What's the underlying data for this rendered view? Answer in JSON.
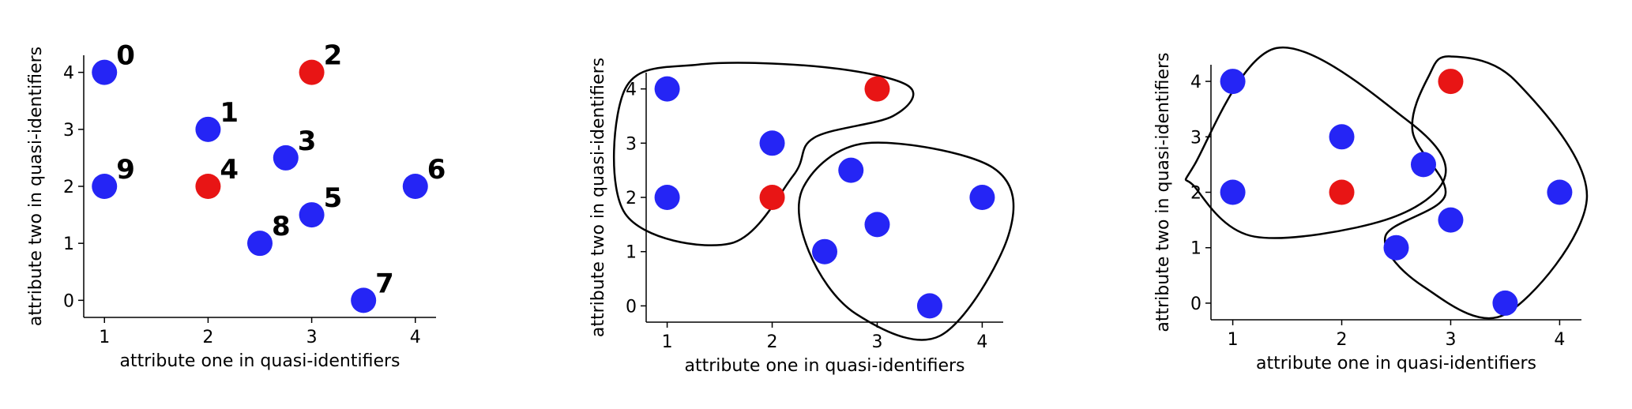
{
  "colors": {
    "blue": "#2525f5",
    "red": "#e81515",
    "axis": "#000000"
  },
  "chart_data": [
    {
      "type": "scatter",
      "xlabel": "attribute one in quasi-identifiers",
      "ylabel": "attribute two in quasi-identifiers",
      "xticks": [
        "1",
        "2",
        "3",
        "4"
      ],
      "yticks": [
        "0",
        "1",
        "2",
        "3",
        "4"
      ],
      "xlim": [
        0.8,
        4.2
      ],
      "ylim": [
        -0.3,
        4.3
      ],
      "grid": false,
      "points": [
        {
          "label": "0",
          "x": 1,
          "y": 4,
          "color": "blue"
        },
        {
          "label": "1",
          "x": 2,
          "y": 3,
          "color": "blue"
        },
        {
          "label": "2",
          "x": 3,
          "y": 4,
          "color": "red"
        },
        {
          "label": "3",
          "x": 2.75,
          "y": 2.5,
          "color": "blue"
        },
        {
          "label": "4",
          "x": 2,
          "y": 2,
          "color": "red"
        },
        {
          "label": "5",
          "x": 3,
          "y": 1.5,
          "color": "blue"
        },
        {
          "label": "6",
          "x": 4,
          "y": 2,
          "color": "blue"
        },
        {
          "label": "7",
          "x": 3.5,
          "y": 0,
          "color": "blue"
        },
        {
          "label": "8",
          "x": 2.5,
          "y": 1,
          "color": "blue"
        },
        {
          "label": "9",
          "x": 1,
          "y": 2,
          "color": "blue"
        }
      ]
    },
    {
      "type": "scatter",
      "xlabel": "attribute one in quasi-identifiers",
      "ylabel": "attribute two in quasi-identifiers",
      "xticks": [
        "1",
        "2",
        "3",
        "4"
      ],
      "yticks": [
        "0",
        "1",
        "2",
        "3",
        "4"
      ],
      "xlim": [
        0.8,
        4.2
      ],
      "ylim": [
        -0.3,
        4.3
      ],
      "grid": false,
      "points": [
        {
          "x": 1,
          "y": 4,
          "color": "blue"
        },
        {
          "x": 2,
          "y": 3,
          "color": "blue"
        },
        {
          "x": 3,
          "y": 4,
          "color": "red"
        },
        {
          "x": 2.75,
          "y": 2.5,
          "color": "blue"
        },
        {
          "x": 2,
          "y": 2,
          "color": "red"
        },
        {
          "x": 3,
          "y": 1.5,
          "color": "blue"
        },
        {
          "x": 4,
          "y": 2,
          "color": "blue"
        },
        {
          "x": 3.5,
          "y": 0,
          "color": "blue"
        },
        {
          "x": 2.5,
          "y": 1,
          "color": "blue"
        },
        {
          "x": 1,
          "y": 2,
          "color": "blue"
        }
      ],
      "clusters": [
        [
          [
            0.6,
            4.0
          ],
          [
            1.3,
            4.45
          ],
          [
            2.5,
            4.4
          ],
          [
            3.3,
            4.05
          ],
          [
            3.15,
            3.5
          ],
          [
            2.4,
            3.1
          ],
          [
            2.2,
            2.4
          ],
          [
            1.6,
            1.15
          ],
          [
            0.6,
            1.7
          ]
        ],
        [
          [
            2.3,
            2.2
          ],
          [
            2.9,
            3.0
          ],
          [
            4.1,
            2.55
          ],
          [
            4.25,
            1.3
          ],
          [
            3.6,
            -0.55
          ],
          [
            2.8,
            -0.15
          ],
          [
            2.35,
            1.0
          ]
        ]
      ]
    },
    {
      "type": "scatter",
      "xlabel": "attribute one in quasi-identifiers",
      "ylabel": "attribute two in quasi-identifiers",
      "xticks": [
        "1",
        "2",
        "3",
        "4"
      ],
      "yticks": [
        "0",
        "1",
        "2",
        "3",
        "4"
      ],
      "xlim": [
        0.8,
        4.2
      ],
      "ylim": [
        -0.3,
        4.3
      ],
      "grid": false,
      "points": [
        {
          "x": 1,
          "y": 4,
          "color": "blue"
        },
        {
          "x": 2,
          "y": 3,
          "color": "blue"
        },
        {
          "x": 3,
          "y": 4,
          "color": "red"
        },
        {
          "x": 2.75,
          "y": 2.5,
          "color": "blue"
        },
        {
          "x": 2,
          "y": 2,
          "color": "red"
        },
        {
          "x": 3,
          "y": 1.5,
          "color": "blue"
        },
        {
          "x": 4,
          "y": 2,
          "color": "blue"
        },
        {
          "x": 3.5,
          "y": 0,
          "color": "blue"
        },
        {
          "x": 2.5,
          "y": 1,
          "color": "blue"
        },
        {
          "x": 1,
          "y": 2,
          "color": "blue"
        }
      ],
      "clusters": [
        [
          [
            0.65,
            2.5
          ],
          [
            1.4,
            4.6
          ],
          [
            2.6,
            3.3
          ],
          [
            2.95,
            2.3
          ],
          [
            2.4,
            1.5
          ],
          [
            1.2,
            1.2
          ],
          [
            0.65,
            2.1
          ]
        ],
        [
          [
            2.8,
            4.1
          ],
          [
            3.0,
            4.45
          ],
          [
            3.6,
            4.0
          ],
          [
            4.25,
            1.9
          ],
          [
            3.5,
            -0.2
          ],
          [
            2.75,
            0.3
          ],
          [
            2.4,
            1.2
          ],
          [
            2.95,
            1.95
          ],
          [
            2.65,
            3.1
          ]
        ]
      ]
    }
  ]
}
